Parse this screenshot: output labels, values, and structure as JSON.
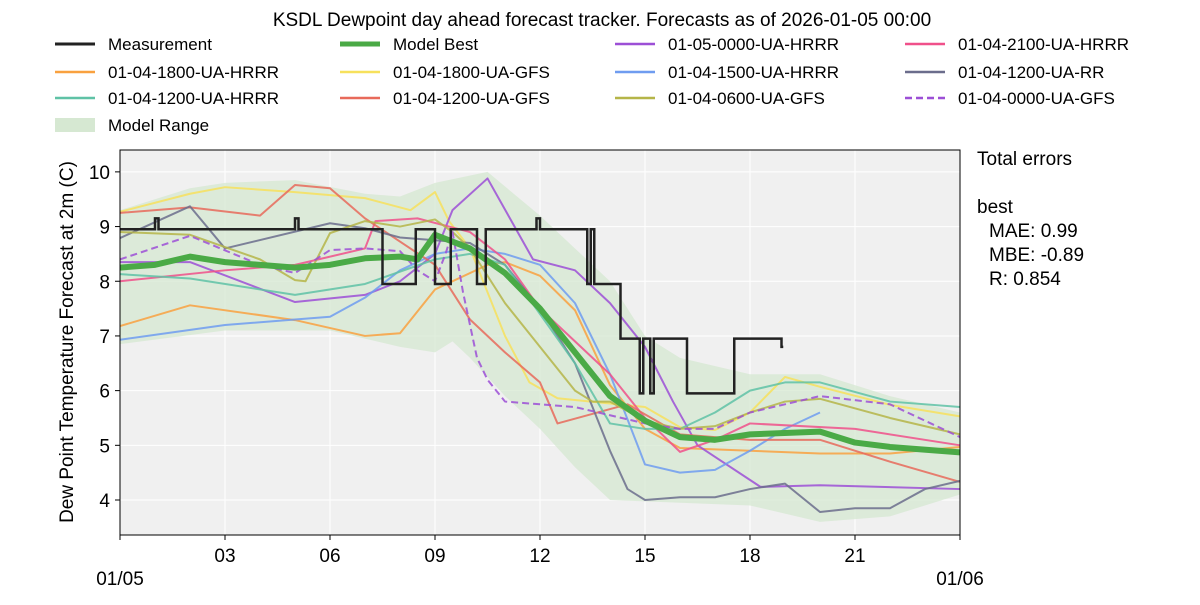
{
  "chart_data": {
    "type": "line",
    "title": "KSDL Dewpoint day ahead forecast tracker. Forecasts as of 2026-01-05 00:00",
    "ylabel": "Dew Point Temperature Forecast at 2m (C)",
    "xlabel": "",
    "xlim_hours": [
      0,
      24
    ],
    "ylim": [
      3.36,
      10.4
    ],
    "grid": true,
    "background": "#f0f0f0",
    "x_ticks": [
      {
        "hour": 0,
        "label": "",
        "date": "01/05"
      },
      {
        "hour": 3,
        "label": "03"
      },
      {
        "hour": 6,
        "label": "06"
      },
      {
        "hour": 9,
        "label": "09"
      },
      {
        "hour": 12,
        "label": "12"
      },
      {
        "hour": 15,
        "label": "15"
      },
      {
        "hour": 18,
        "label": "18"
      },
      {
        "hour": 21,
        "label": "21"
      },
      {
        "hour": 24,
        "label": "",
        "date": "01/06"
      }
    ],
    "y_ticks": [
      4,
      5,
      6,
      7,
      8,
      9,
      10
    ],
    "legend_position": "top",
    "model_range": {
      "name": "Model Range",
      "color": "#d6e8d2",
      "upper": [
        [
          0,
          9.3
        ],
        [
          1,
          9.5
        ],
        [
          2,
          9.7
        ],
        [
          3,
          9.8
        ],
        [
          5,
          9.85
        ],
        [
          7,
          9.6
        ],
        [
          8,
          9.55
        ],
        [
          9,
          9.8
        ],
        [
          10.5,
          10.0
        ],
        [
          12,
          9.2
        ],
        [
          13,
          8.6
        ],
        [
          14,
          8.0
        ],
        [
          15,
          7.0
        ],
        [
          16,
          6.6
        ],
        [
          18,
          6.3
        ],
        [
          20,
          6.3
        ],
        [
          22,
          5.9
        ],
        [
          24,
          5.6
        ]
      ],
      "lower": [
        [
          0,
          6.85
        ],
        [
          3,
          7.1
        ],
        [
          6,
          7.1
        ],
        [
          8,
          6.8
        ],
        [
          9,
          6.7
        ],
        [
          9.5,
          6.9
        ],
        [
          10,
          6.6
        ],
        [
          11,
          5.9
        ],
        [
          12,
          5.3
        ],
        [
          13,
          4.6
        ],
        [
          14,
          4.0
        ],
        [
          16,
          3.95
        ],
        [
          18,
          3.9
        ],
        [
          20,
          3.6
        ],
        [
          22,
          3.7
        ],
        [
          24,
          4.1
        ]
      ]
    },
    "measurement": {
      "name": "Measurement",
      "color": "#222222",
      "steps": [
        [
          0,
          8.95
        ],
        [
          1,
          9.15
        ],
        [
          1.1,
          8.95
        ],
        [
          5,
          9.15
        ],
        [
          5.1,
          8.95
        ],
        [
          7.5,
          7.95
        ],
        [
          8.45,
          8.95
        ],
        [
          9.0,
          7.95
        ],
        [
          9.45,
          8.95
        ],
        [
          10.2,
          7.95
        ],
        [
          10.45,
          8.95
        ],
        [
          11.9,
          9.15
        ],
        [
          12.0,
          8.95
        ],
        [
          13.35,
          7.95
        ],
        [
          13.45,
          8.95
        ],
        [
          13.55,
          7.95
        ],
        [
          14.3,
          6.95
        ],
        [
          14.85,
          5.95
        ],
        [
          14.95,
          6.95
        ],
        [
          15.15,
          5.95
        ],
        [
          15.25,
          6.95
        ],
        [
          16.2,
          5.95
        ],
        [
          17.55,
          6.95
        ],
        [
          18.9,
          6.8
        ],
        [
          18.95,
          6.8
        ]
      ]
    },
    "series": [
      {
        "name": "Model Best",
        "color": "#4aaa46",
        "width": 6,
        "dash": false,
        "points": [
          [
            0,
            8.25
          ],
          [
            1,
            8.3
          ],
          [
            2,
            8.45
          ],
          [
            3,
            8.35
          ],
          [
            4,
            8.3
          ],
          [
            5,
            8.25
          ],
          [
            6,
            8.3
          ],
          [
            7,
            8.42
          ],
          [
            8,
            8.45
          ],
          [
            8.5,
            8.4
          ],
          [
            9,
            8.85
          ],
          [
            10,
            8.6
          ],
          [
            11,
            8.15
          ],
          [
            12,
            7.5
          ],
          [
            13,
            6.7
          ],
          [
            14,
            5.9
          ],
          [
            15,
            5.45
          ],
          [
            16,
            5.15
          ],
          [
            17,
            5.1
          ],
          [
            18,
            5.2
          ],
          [
            20,
            5.25
          ],
          [
            21,
            5.05
          ],
          [
            22,
            4.97
          ],
          [
            24,
            4.87
          ]
        ]
      },
      {
        "name": "01-04-1800-UA-HRRR",
        "color": "#f9a13f",
        "width": 2,
        "dash": false,
        "points": [
          [
            0,
            7.18
          ],
          [
            2,
            7.56
          ],
          [
            5,
            7.29
          ],
          [
            7,
            7.0
          ],
          [
            8,
            7.05
          ],
          [
            9,
            7.85
          ],
          [
            10.5,
            8.3
          ],
          [
            11,
            8.35
          ],
          [
            12,
            8.1
          ],
          [
            13,
            7.47
          ],
          [
            14,
            6.1
          ],
          [
            15,
            5.3
          ],
          [
            16,
            4.95
          ],
          [
            18,
            4.9
          ],
          [
            20,
            4.85
          ],
          [
            22,
            4.85
          ],
          [
            24,
            4.97
          ]
        ]
      },
      {
        "name": "01-04-1800-UA-GFS",
        "color": "#f7e15c",
        "width": 2,
        "dash": false,
        "points": [
          [
            0,
            9.27
          ],
          [
            2,
            9.6
          ],
          [
            3,
            9.72
          ],
          [
            5,
            9.63
          ],
          [
            7,
            9.52
          ],
          [
            8.3,
            9.3
          ],
          [
            9,
            9.63
          ],
          [
            9.4,
            9.1
          ],
          [
            10,
            8.6
          ],
          [
            11,
            7.0
          ],
          [
            11.7,
            6.15
          ],
          [
            12.5,
            5.86
          ],
          [
            15,
            5.7
          ],
          [
            16,
            5.33
          ],
          [
            17,
            5.28
          ],
          [
            18,
            5.6
          ],
          [
            19,
            6.25
          ],
          [
            20,
            6.07
          ],
          [
            22,
            5.74
          ],
          [
            24,
            5.53
          ]
        ]
      },
      {
        "name": "01-05-0000-UA-HRRR",
        "color": "#9c4fd6",
        "width": 2,
        "dash": false,
        "points": [
          [
            0,
            8.35
          ],
          [
            2,
            8.35
          ],
          [
            5,
            7.62
          ],
          [
            7,
            7.75
          ],
          [
            8,
            8.0
          ],
          [
            9,
            8.5
          ],
          [
            9.5,
            9.3
          ],
          [
            10.5,
            9.88
          ],
          [
            11.8,
            8.4
          ],
          [
            13,
            8.2
          ],
          [
            14,
            7.6
          ],
          [
            15,
            6.8
          ],
          [
            15.8,
            5.8
          ],
          [
            16.5,
            5.0
          ],
          [
            18.3,
            4.24
          ],
          [
            20,
            4.27
          ],
          [
            24,
            4.2
          ]
        ]
      },
      {
        "name": "01-04-1500-UA-HRRR",
        "color": "#6f9cf0",
        "width": 2,
        "dash": false,
        "points": [
          [
            0,
            6.93
          ],
          [
            3,
            7.2
          ],
          [
            5,
            7.3
          ],
          [
            6,
            7.35
          ],
          [
            7,
            7.7
          ],
          [
            8,
            8.2
          ],
          [
            9,
            8.5
          ],
          [
            10,
            8.6
          ],
          [
            11,
            8.5
          ],
          [
            12,
            8.3
          ],
          [
            13,
            7.6
          ],
          [
            14,
            6.3
          ],
          [
            15,
            4.65
          ],
          [
            16,
            4.5
          ],
          [
            17,
            4.55
          ],
          [
            18,
            4.9
          ],
          [
            19,
            5.3
          ],
          [
            20,
            5.6
          ]
        ]
      },
      {
        "name": "01-04-2100-UA-HRRR",
        "color": "#f0508a",
        "width": 2,
        "dash": false,
        "points": [
          [
            0,
            8.0
          ],
          [
            3,
            8.2
          ],
          [
            5,
            8.3
          ],
          [
            7,
            8.6
          ],
          [
            7.3,
            9.1
          ],
          [
            8.5,
            9.15
          ],
          [
            10,
            8.9
          ],
          [
            11,
            8.4
          ],
          [
            12,
            7.5
          ],
          [
            13,
            6.9
          ],
          [
            14,
            6.3
          ],
          [
            15,
            5.5
          ],
          [
            16,
            4.88
          ],
          [
            17,
            5.1
          ],
          [
            18,
            5.4
          ],
          [
            21,
            5.3
          ],
          [
            24,
            5.0
          ]
        ]
      },
      {
        "name": "01-04-1200-UA-GFS",
        "color": "#e86a5a",
        "width": 2,
        "dash": false,
        "points": [
          [
            0,
            9.25
          ],
          [
            2,
            9.35
          ],
          [
            4,
            9.2
          ],
          [
            5,
            9.76
          ],
          [
            6,
            9.7
          ],
          [
            7,
            9.15
          ],
          [
            9,
            8.3
          ],
          [
            10,
            7.3
          ],
          [
            11,
            6.7
          ],
          [
            12,
            6.15
          ],
          [
            12.5,
            5.4
          ],
          [
            14.5,
            5.75
          ],
          [
            16,
            5.2
          ],
          [
            18,
            5.1
          ],
          [
            20,
            5.1
          ],
          [
            22,
            4.7
          ],
          [
            24,
            4.33
          ]
        ]
      },
      {
        "name": "01-04-1200-UA-RR",
        "color": "#6b6d8c",
        "width": 2,
        "dash": false,
        "points": [
          [
            0,
            8.79
          ],
          [
            2,
            9.37
          ],
          [
            3,
            8.6
          ],
          [
            6,
            9.06
          ],
          [
            7,
            8.97
          ],
          [
            8,
            8.8
          ],
          [
            9,
            8.75
          ],
          [
            10,
            8.7
          ],
          [
            11,
            8.3
          ],
          [
            12,
            7.5
          ],
          [
            13,
            6.5
          ],
          [
            13.5,
            5.7
          ],
          [
            14,
            4.9
          ],
          [
            14.5,
            4.2
          ],
          [
            15,
            4.0
          ],
          [
            16,
            4.05
          ],
          [
            17,
            4.05
          ],
          [
            18,
            4.2
          ],
          [
            19,
            4.3
          ],
          [
            20,
            3.78
          ],
          [
            21,
            3.85
          ],
          [
            22,
            3.85
          ],
          [
            23,
            4.2
          ],
          [
            24,
            4.35
          ]
        ]
      },
      {
        "name": "01-04-1200-UA-HRRR",
        "color": "#5fc2a6",
        "width": 2,
        "dash": false,
        "points": [
          [
            0,
            8.13
          ],
          [
            2,
            8.05
          ],
          [
            5,
            7.75
          ],
          [
            7,
            7.95
          ],
          [
            9,
            8.4
          ],
          [
            10,
            8.5
          ],
          [
            11,
            8.3
          ],
          [
            12,
            7.4
          ],
          [
            13,
            6.5
          ],
          [
            14,
            5.4
          ],
          [
            15,
            5.3
          ],
          [
            16,
            5.3
          ],
          [
            17,
            5.6
          ],
          [
            18,
            6.0
          ],
          [
            19,
            6.15
          ],
          [
            20,
            6.15
          ],
          [
            22,
            5.8
          ],
          [
            24,
            5.7
          ]
        ]
      },
      {
        "name": "01-04-0600-UA-GFS",
        "color": "#b5b548",
        "width": 2,
        "dash": false,
        "points": [
          [
            0,
            8.9
          ],
          [
            2,
            8.85
          ],
          [
            4,
            8.4
          ],
          [
            5,
            8.02
          ],
          [
            5.3,
            8.0
          ],
          [
            6,
            8.88
          ],
          [
            7,
            9.1
          ],
          [
            8,
            9.0
          ],
          [
            9,
            9.13
          ],
          [
            9.5,
            8.9
          ],
          [
            10,
            8.6
          ],
          [
            11,
            7.6
          ],
          [
            12,
            6.8
          ],
          [
            13,
            6.0
          ],
          [
            13.5,
            5.8
          ],
          [
            14,
            5.8
          ],
          [
            15,
            5.45
          ],
          [
            16,
            5.3
          ],
          [
            17,
            5.35
          ],
          [
            18,
            5.6
          ],
          [
            19,
            5.8
          ],
          [
            20,
            5.85
          ],
          [
            22,
            5.5
          ],
          [
            24,
            5.2
          ]
        ]
      },
      {
        "name": "01-04-0000-UA-GFS",
        "color": "#9c4fd6",
        "width": 2,
        "dash": true,
        "points": [
          [
            0,
            8.4
          ],
          [
            2,
            8.83
          ],
          [
            4,
            8.3
          ],
          [
            5,
            8.15
          ],
          [
            6,
            8.57
          ],
          [
            7,
            8.6
          ],
          [
            8,
            8.55
          ],
          [
            8.5,
            8.2
          ],
          [
            9,
            8.0
          ],
          [
            9.3,
            8.5
          ],
          [
            9.5,
            8.9
          ],
          [
            9.8,
            7.8
          ],
          [
            10.2,
            6.6
          ],
          [
            10.5,
            6.2
          ],
          [
            11,
            5.8
          ],
          [
            12,
            5.75
          ],
          [
            13,
            5.7
          ],
          [
            14,
            5.55
          ],
          [
            15,
            5.4
          ],
          [
            16,
            5.3
          ],
          [
            17,
            5.3
          ],
          [
            18,
            5.6
          ],
          [
            19,
            5.75
          ],
          [
            20,
            5.9
          ],
          [
            22,
            5.75
          ],
          [
            24,
            5.15
          ]
        ]
      }
    ],
    "legend_order": [
      "Measurement",
      "Model Best",
      "01-05-0000-UA-HRRR",
      "01-04-2100-UA-HRRR",
      "01-04-1800-UA-HRRR",
      "01-04-1800-UA-GFS",
      "01-04-1500-UA-HRRR",
      "01-04-1200-UA-RR",
      "01-04-1200-UA-HRRR",
      "01-04-1200-UA-GFS",
      "01-04-0600-UA-GFS",
      "01-04-0000-UA-GFS",
      "Model Range"
    ]
  },
  "errors": {
    "heading": "Total errors",
    "model": "best",
    "mae": "MAE: 0.99",
    "mbe": "MBE: -0.89",
    "r": "R: 0.854"
  }
}
